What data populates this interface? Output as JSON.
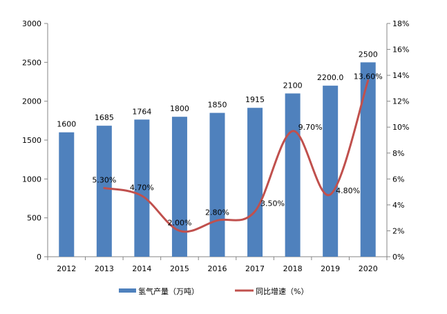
{
  "chart_data": {
    "type": "bar+line",
    "categories": [
      "2012",
      "2013",
      "2014",
      "2015",
      "2016",
      "2017",
      "2018",
      "2019",
      "2020"
    ],
    "series": [
      {
        "name": "氢气产量（万吨）",
        "type": "bar",
        "axis": "left",
        "color": "#4f81bd",
        "values": [
          1600,
          1685,
          1764,
          1800,
          1850,
          1915,
          2100,
          2200,
          2500
        ],
        "labels": [
          "1600",
          "1685",
          "1764",
          "1800",
          "1850",
          "1915",
          "2100",
          "2200.0",
          "2500"
        ]
      },
      {
        "name": "同比增速（%）",
        "type": "line",
        "axis": "right",
        "color": "#c0504d",
        "smooth": true,
        "values": [
          null,
          5.3,
          4.7,
          2.0,
          2.8,
          3.5,
          9.7,
          4.8,
          13.6
        ],
        "labels": [
          "",
          "5.30%",
          "4.70%",
          "2.00%",
          "2.80%",
          "3.50%",
          "9.70%",
          "4.80%",
          "13.60%"
        ]
      }
    ],
    "y_left": {
      "range": [
        0,
        3000
      ],
      "ticks": [
        "0",
        "500",
        "1000",
        "1500",
        "2000",
        "2500",
        "3000"
      ]
    },
    "y_right": {
      "range": [
        0,
        18
      ],
      "ticks": [
        "0%",
        "2%",
        "4%",
        "6%",
        "8%",
        "10%",
        "12%",
        "14%",
        "16%",
        "18%"
      ]
    },
    "grid": false,
    "legend": "bottom"
  }
}
